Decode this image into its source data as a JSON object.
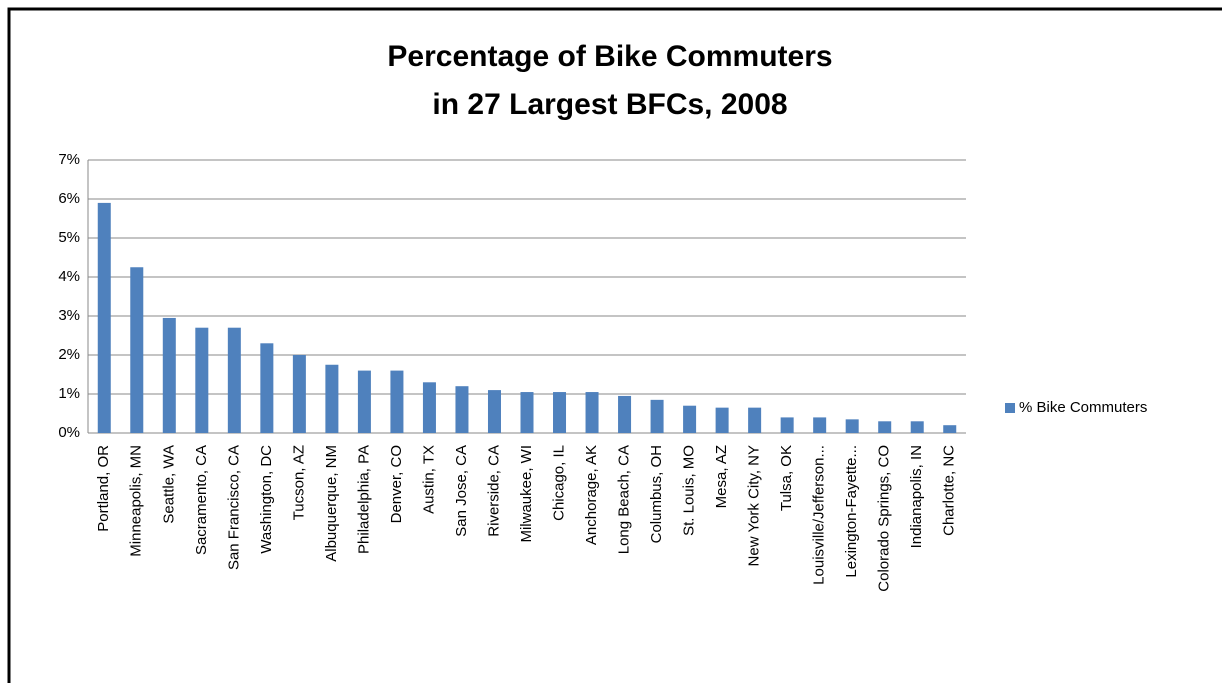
{
  "chart_data": {
    "type": "bar",
    "title": "Percentage of Bike Commuters",
    "subtitle": "in 27 Largest BFCs, 2008",
    "categories": [
      "Portland, OR",
      "Minneapolis, MN",
      "Seattle, WA",
      "Sacramento, CA",
      "San Francisco, CA",
      "Washington, DC",
      "Tucson, AZ",
      "Albuquerque, NM",
      "Philadelphia, PA",
      "Denver, CO",
      "Austin, TX",
      "San Jose, CA",
      "Riverside, CA",
      "Milwaukee, WI",
      "Chicago, IL",
      "Anchorage, AK",
      "Long Beach, CA",
      "Columbus, OH",
      "St. Louis, MO",
      "Mesa, AZ",
      "New York City, NY",
      "Tulsa, OK",
      "Louisville/Jefferson...",
      "Lexington-Fayette...",
      "Colorado Springs, CO",
      "Indianapolis, IN",
      "Charlotte, NC"
    ],
    "series": [
      {
        "name": "% Bike Commuters",
        "color": "#4f81bd",
        "values": [
          5.9,
          4.25,
          2.95,
          2.7,
          2.7,
          2.3,
          2.0,
          1.75,
          1.6,
          1.6,
          1.3,
          1.2,
          1.1,
          1.05,
          1.05,
          1.05,
          0.95,
          0.85,
          0.7,
          0.65,
          0.65,
          0.4,
          0.4,
          0.35,
          0.3,
          0.3,
          0.2
        ]
      }
    ],
    "ylim": [
      0,
      7
    ],
    "yticks": [
      {
        "value": 0,
        "label": "0%"
      },
      {
        "value": 1,
        "label": "1%"
      },
      {
        "value": 2,
        "label": "2%"
      },
      {
        "value": 3,
        "label": "3%"
      },
      {
        "value": 4,
        "label": "4%"
      },
      {
        "value": 5,
        "label": "5%"
      },
      {
        "value": 6,
        "label": "6%"
      },
      {
        "value": 7,
        "label": "7%"
      }
    ],
    "grid": true,
    "legend": "right"
  }
}
